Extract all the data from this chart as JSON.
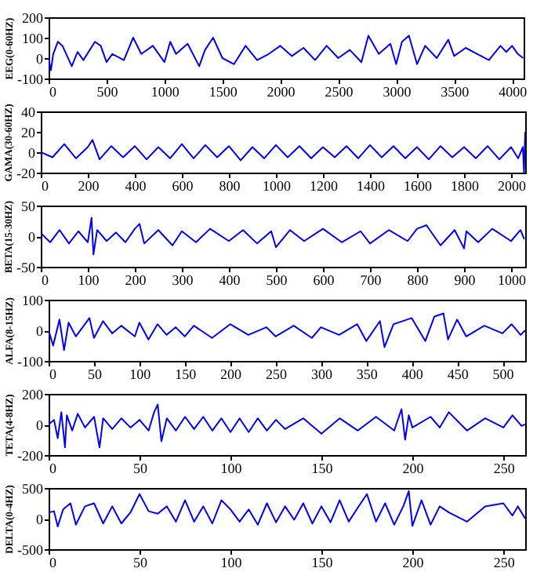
{
  "chart_data": [
    {
      "type": "line",
      "ylabel": "EEG(0-60HZ)",
      "xlim": [
        0,
        4100
      ],
      "xticks": [
        0,
        500,
        1000,
        1500,
        2000,
        2500,
        3000,
        3500,
        4000
      ],
      "ylim": [
        -100,
        200
      ],
      "yticks": [
        -100,
        0,
        100,
        200
      ],
      "x": [
        0,
        20,
        40,
        80,
        120,
        200,
        250,
        300,
        400,
        450,
        500,
        550,
        650,
        730,
        800,
        900,
        1000,
        1050,
        1100,
        1200,
        1300,
        1350,
        1420,
        1500,
        1600,
        1700,
        1800,
        1900,
        2000,
        2100,
        2200,
        2300,
        2400,
        2500,
        2600,
        2700,
        2760,
        2850,
        2950,
        3000,
        3050,
        3110,
        3180,
        3250,
        3350,
        3450,
        3500,
        3600,
        3700,
        3800,
        3900,
        3950,
        4000,
        4050,
        4096
      ],
      "series": [
        {
          "color": "#0000ff",
          "values": [
            0,
            -60,
            20,
            80,
            60,
            -40,
            30,
            -10,
            80,
            60,
            -20,
            20,
            -10,
            100,
            20,
            60,
            -20,
            80,
            20,
            70,
            -40,
            40,
            100,
            0,
            -30,
            60,
            -10,
            20,
            60,
            10,
            50,
            -10,
            60,
            0,
            40,
            -20,
            110,
            20,
            70,
            -30,
            80,
            110,
            -30,
            60,
            0,
            90,
            10,
            50,
            20,
            -10,
            60,
            30,
            60,
            20,
            0
          ]
        }
      ]
    },
    {
      "type": "line",
      "ylabel": "GAMA(30-60HZ)",
      "xlim": [
        0,
        2060
      ],
      "xticks": [
        0,
        200,
        400,
        600,
        800,
        1000,
        1200,
        1400,
        1600,
        1800,
        2000
      ],
      "ylim": [
        -20,
        40
      ],
      "yticks": [
        -20,
        0,
        20,
        40
      ],
      "x": [
        0,
        50,
        100,
        150,
        200,
        220,
        250,
        300,
        350,
        400,
        450,
        500,
        550,
        600,
        650,
        700,
        750,
        800,
        850,
        900,
        950,
        1000,
        1050,
        1100,
        1150,
        1200,
        1250,
        1300,
        1350,
        1400,
        1450,
        1500,
        1550,
        1600,
        1650,
        1700,
        1750,
        1800,
        1850,
        1900,
        1950,
        2000,
        2030,
        2050,
        2055,
        2060
      ],
      "series": [
        {
          "color": "#0000ff",
          "values": [
            0,
            -5,
            8,
            -6,
            5,
            12,
            -7,
            6,
            -5,
            6,
            -7,
            5,
            -6,
            8,
            -6,
            7,
            -5,
            6,
            -8,
            5,
            -6,
            7,
            -5,
            6,
            -6,
            5,
            -5,
            6,
            -6,
            7,
            -5,
            6,
            -6,
            5,
            -7,
            6,
            -5,
            5,
            -6,
            6,
            -7,
            5,
            -6,
            5,
            -20,
            20
          ]
        }
      ]
    },
    {
      "type": "line",
      "ylabel": "BETA(15-30HZ)",
      "xlim": [
        0,
        1030
      ],
      "xticks": [
        0,
        100,
        200,
        300,
        400,
        500,
        600,
        700,
        800,
        900,
        1000
      ],
      "ylim": [
        -50,
        50
      ],
      "yticks": [
        -50,
        0,
        50
      ],
      "x": [
        0,
        20,
        40,
        60,
        80,
        100,
        108,
        112,
        120,
        140,
        160,
        180,
        200,
        210,
        220,
        250,
        280,
        300,
        330,
        360,
        400,
        430,
        460,
        490,
        500,
        530,
        560,
        600,
        640,
        680,
        700,
        740,
        780,
        800,
        820,
        850,
        880,
        900,
        905,
        930,
        960,
        1000,
        1020,
        1028
      ],
      "series": [
        {
          "color": "#0000ff",
          "values": [
            5,
            -10,
            10,
            -12,
            8,
            -10,
            30,
            -30,
            10,
            -8,
            6,
            -10,
            12,
            20,
            -12,
            10,
            -15,
            8,
            -10,
            12,
            -8,
            10,
            -12,
            8,
            -18,
            10,
            -8,
            12,
            -10,
            8,
            -12,
            10,
            -8,
            12,
            18,
            -15,
            10,
            -20,
            8,
            -10,
            12,
            -8,
            10,
            -5
          ]
        }
      ]
    },
    {
      "type": "line",
      "ylabel": "ALFA(8-15HZ)",
      "xlim": [
        0,
        525
      ],
      "xticks": [
        0,
        50,
        100,
        150,
        200,
        250,
        300,
        350,
        400,
        450,
        500
      ],
      "ylim": [
        -100,
        100
      ],
      "yticks": [
        -100,
        0,
        100
      ],
      "x": [
        0,
        5,
        12,
        17,
        22,
        30,
        45,
        50,
        60,
        70,
        80,
        95,
        100,
        110,
        120,
        130,
        140,
        150,
        160,
        180,
        200,
        220,
        240,
        250,
        270,
        290,
        300,
        320,
        340,
        350,
        365,
        370,
        380,
        400,
        415,
        425,
        435,
        440,
        450,
        460,
        480,
        500,
        510,
        520,
        525
      ],
      "series": [
        {
          "color": "#0000ff",
          "values": [
            0,
            -50,
            35,
            -65,
            25,
            -20,
            40,
            -25,
            30,
            -10,
            15,
            -20,
            25,
            -30,
            20,
            -15,
            10,
            -20,
            15,
            -25,
            20,
            -15,
            10,
            -20,
            15,
            -25,
            10,
            -15,
            20,
            -35,
            30,
            -55,
            20,
            40,
            -35,
            45,
            55,
            -30,
            35,
            -20,
            15,
            -10,
            20,
            -15,
            0
          ]
        }
      ]
    },
    {
      "type": "line",
      "ylabel": "TETA(4-8HZ)",
      "xlim": [
        0,
        262
      ],
      "xticks": [
        0,
        50,
        100,
        150,
        200,
        250
      ],
      "ylim": [
        -200,
        200
      ],
      "yticks": [
        -200,
        0,
        200
      ],
      "x": [
        0,
        3,
        5,
        7,
        9,
        10,
        13,
        16,
        20,
        25,
        28,
        30,
        35,
        40,
        45,
        50,
        55,
        58,
        60,
        62,
        65,
        70,
        75,
        80,
        85,
        90,
        95,
        100,
        105,
        110,
        115,
        120,
        125,
        130,
        140,
        150,
        160,
        170,
        180,
        190,
        194,
        196,
        198,
        200,
        210,
        215,
        220,
        230,
        240,
        250,
        255,
        260,
        262
      ],
      "series": [
        {
          "color": "#0000ff",
          "values": [
            0,
            30,
            -90,
            80,
            -150,
            60,
            -40,
            70,
            -20,
            50,
            -150,
            40,
            -30,
            40,
            -20,
            30,
            -40,
            80,
            130,
            -110,
            40,
            -40,
            50,
            -30,
            50,
            -40,
            40,
            -50,
            40,
            -50,
            40,
            -40,
            30,
            -30,
            40,
            -60,
            40,
            -40,
            50,
            -40,
            100,
            -100,
            60,
            -20,
            50,
            -20,
            80,
            -40,
            40,
            -20,
            60,
            -10,
            0
          ]
        }
      ]
    },
    {
      "type": "line",
      "ylabel": "DELTA(0-4HZ)",
      "xlim": [
        0,
        262
      ],
      "xticks": [
        0,
        50,
        100,
        150,
        200,
        250
      ],
      "ylim": [
        -500,
        500
      ],
      "yticks": [
        -500,
        0,
        500
      ],
      "x": [
        0,
        3,
        5,
        8,
        12,
        15,
        20,
        25,
        30,
        35,
        40,
        45,
        50,
        55,
        60,
        65,
        70,
        75,
        80,
        85,
        90,
        95,
        100,
        105,
        110,
        115,
        120,
        125,
        130,
        135,
        140,
        145,
        150,
        155,
        160,
        165,
        170,
        175,
        180,
        185,
        190,
        195,
        198,
        200,
        205,
        210,
        215,
        220,
        230,
        240,
        250,
        255,
        258,
        262
      ],
      "series": [
        {
          "color": "#0000ff",
          "values": [
            100,
            120,
            -130,
            150,
            250,
            -100,
            200,
            250,
            -80,
            200,
            -80,
            100,
            400,
            120,
            80,
            200,
            -50,
            300,
            -50,
            200,
            -80,
            300,
            150,
            -50,
            150,
            -100,
            250,
            -60,
            200,
            -20,
            250,
            -80,
            200,
            -60,
            300,
            -50,
            180,
            400,
            -50,
            250,
            -100,
            200,
            450,
            -120,
            300,
            -100,
            200,
            100,
            -50,
            200,
            250,
            50,
            200,
            0
          ]
        }
      ]
    }
  ]
}
